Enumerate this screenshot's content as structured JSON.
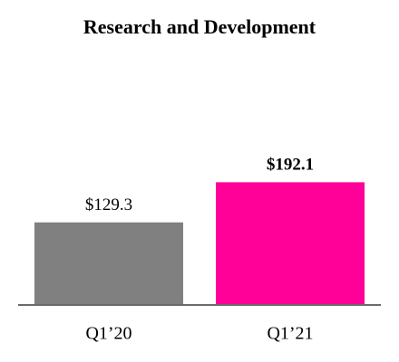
{
  "chart_data": {
    "type": "bar",
    "title": "Research and Development",
    "categories": [
      "Q1’20",
      "Q1’21"
    ],
    "values": [
      129.3,
      192.1
    ],
    "value_labels": [
      "$129.3",
      "$192.1"
    ],
    "colors": [
      "#808080",
      "#ff0099"
    ]
  }
}
